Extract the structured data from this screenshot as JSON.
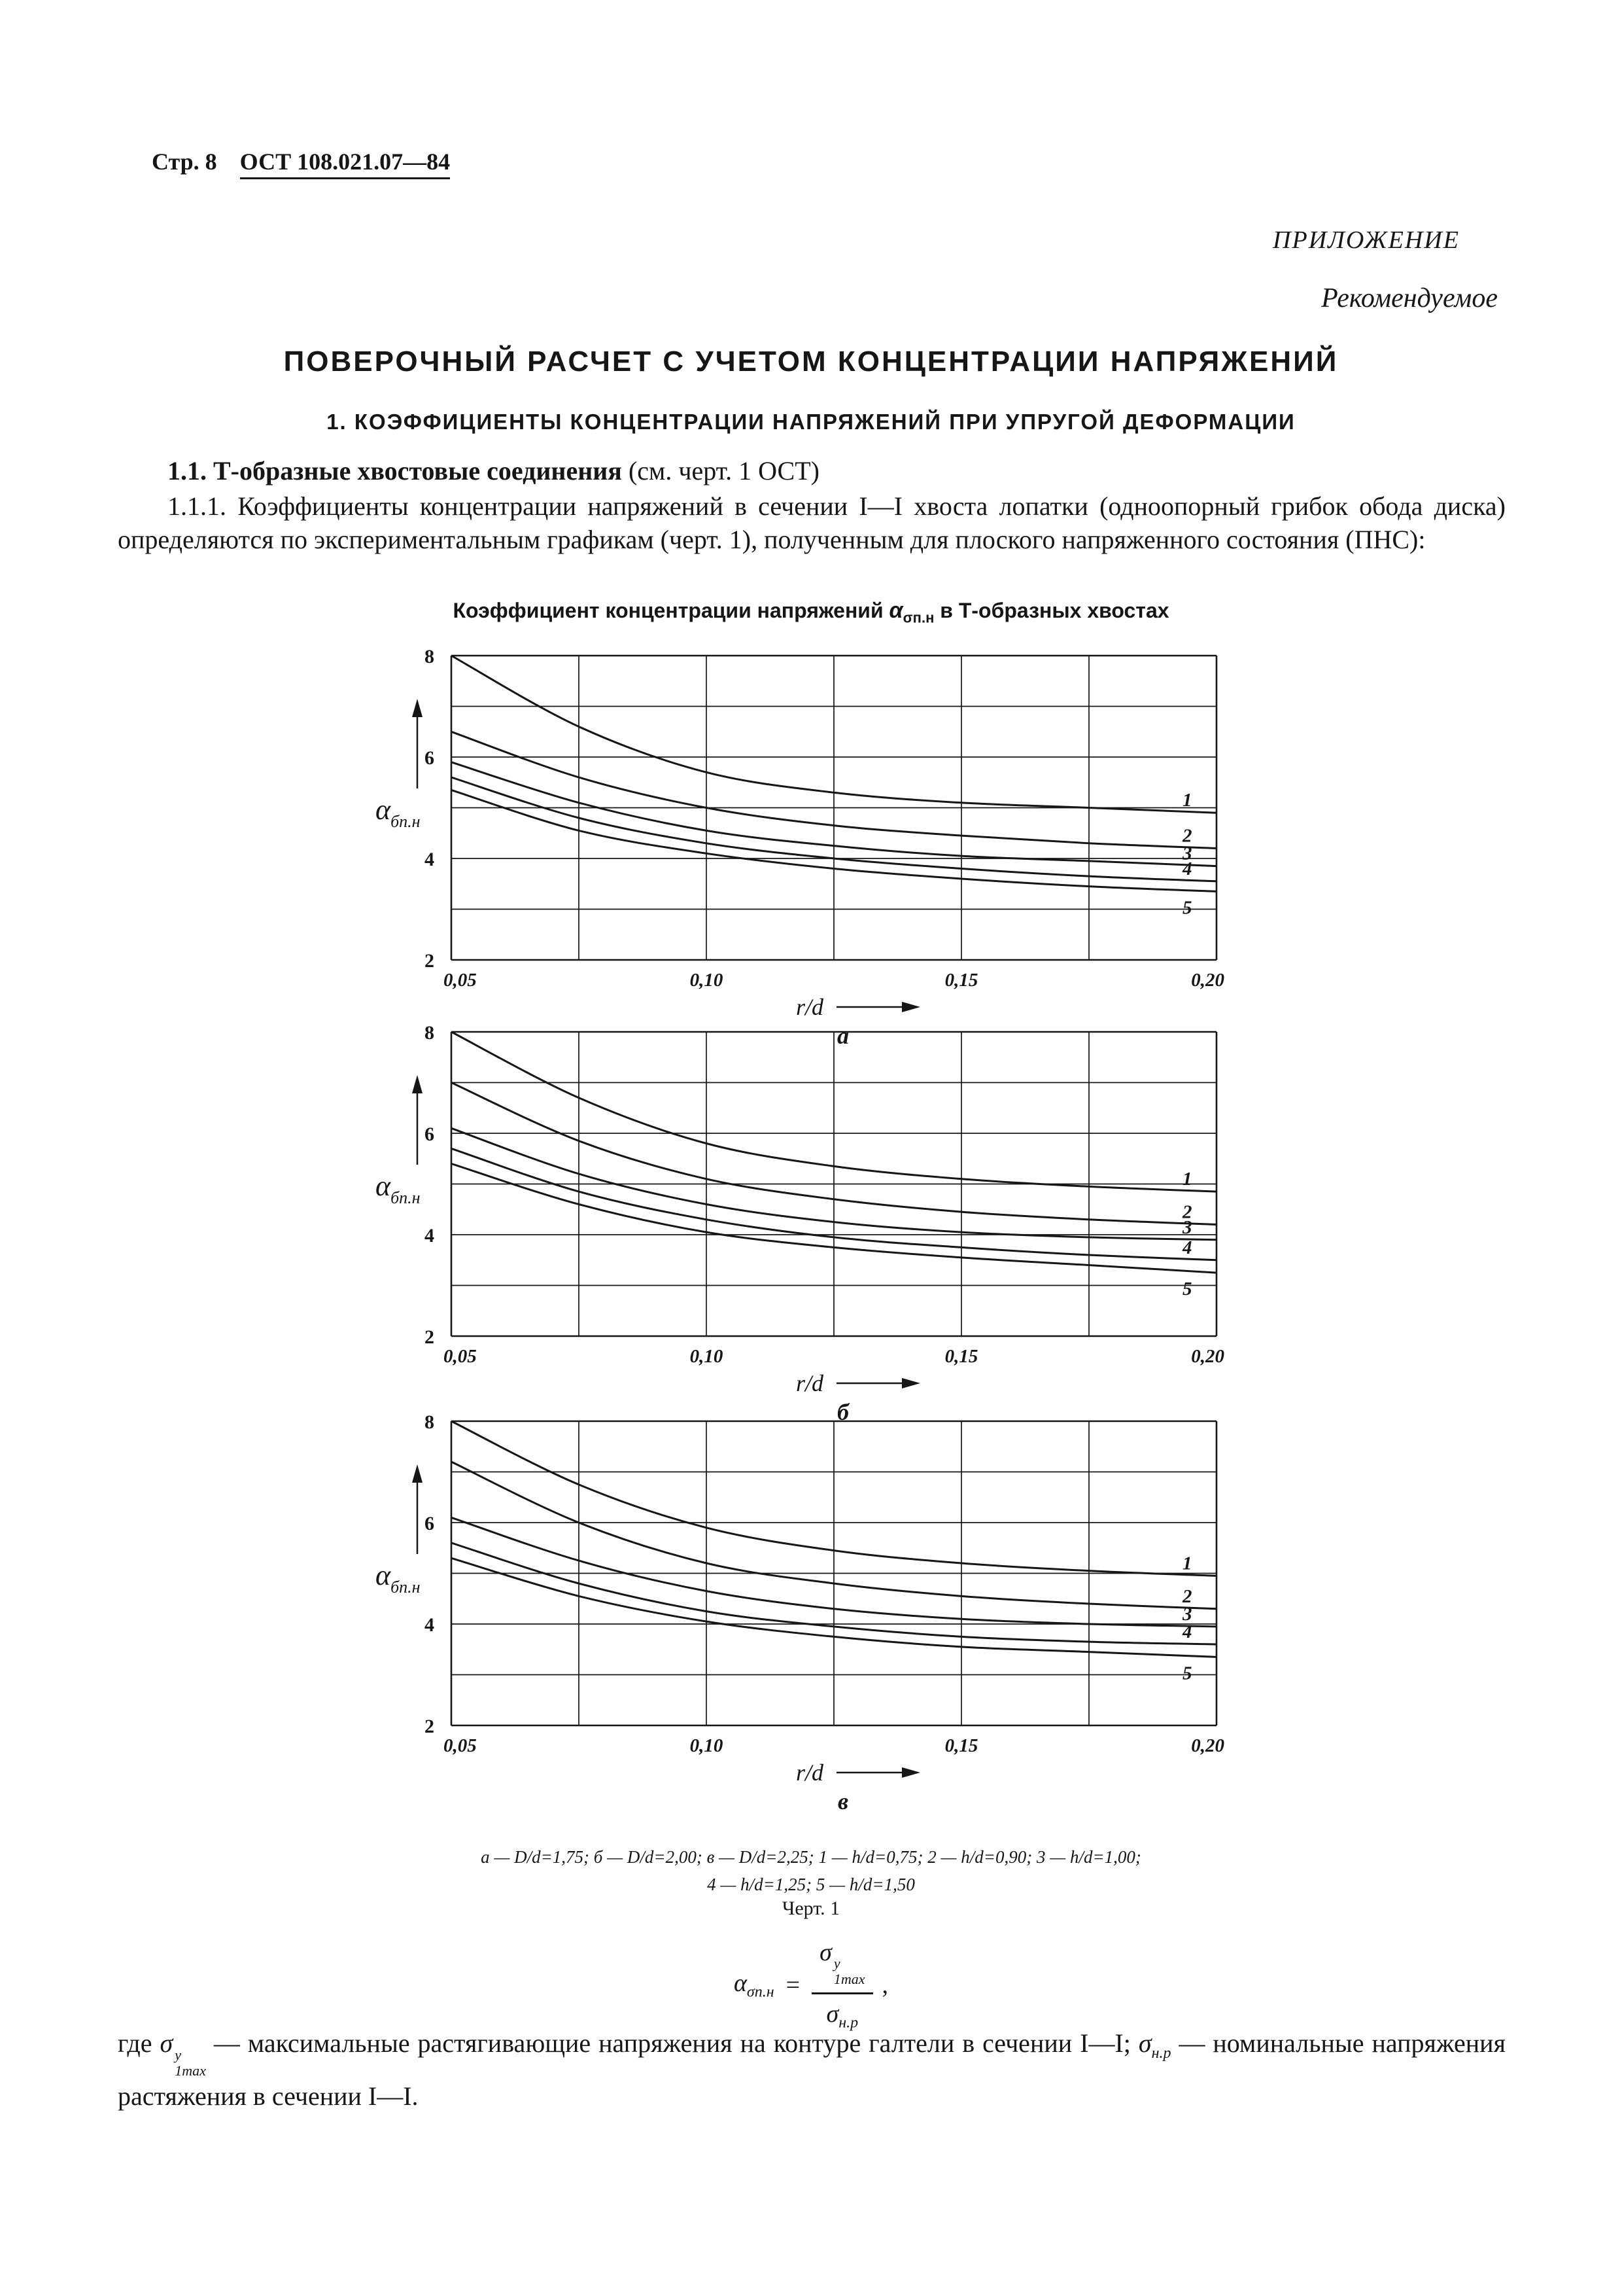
{
  "colors": {
    "ink": "#161616",
    "paper": "#ffffff"
  },
  "header": {
    "page_label": "Стр. 8",
    "doc_number": "ОСТ 108.021.07—84"
  },
  "annex": {
    "label": "ПРИЛОЖЕНИЕ",
    "sublabel": "Рекомендуемое"
  },
  "title": "ПОВЕРОЧНЫЙ РАСЧЕТ С УЧЕТОМ КОНЦЕНТРАЦИИ НАПРЯЖЕНИЙ",
  "section_heading": "1. КОЭФФИЦИЕНТЫ КОНЦЕНТРАЦИИ НАПРЯЖЕНИЙ ПРИ УПРУГОЙ ДЕФОРМАЦИИ",
  "subsection": {
    "bold": "1.1. Т-образные хвостовые соединения",
    "rest": " (см. черт. 1 ОСТ)"
  },
  "paragraph": "1.1.1. Коэффициенты концентрации напряжений в сечении I—I хвоста лопатки (одноопорный грибок обода диска) определяются по экспериментальным графикам (черт. 1), полученным для плоского напряженного состояния (ПНС):",
  "chart_caption": {
    "pre": "Коэффициент концентрации напряжений ",
    "alpha": "α",
    "sub": "σп.н",
    "post": " в Т-образных хвостах"
  },
  "chart_data": [
    {
      "type": "line",
      "label": "а",
      "param": "D/d=1,75",
      "xlabel": "r/d",
      "ylabel_base": "α",
      "ylabel_sub": "бп.н",
      "xlim": [
        0.05,
        0.2
      ],
      "ylim": [
        2,
        8
      ],
      "xgrid": 0.025,
      "ygrid": 1,
      "grid": "on",
      "x": [
        0.05,
        0.075,
        0.1,
        0.125,
        0.15,
        0.175,
        0.2
      ],
      "xticks": [
        {
          "v": 0.05,
          "label": "0,05"
        },
        {
          "v": 0.1,
          "label": "0,10"
        },
        {
          "v": 0.15,
          "label": "0,15"
        },
        {
          "v": 0.2,
          "label": "0,20"
        }
      ],
      "yticks": [
        8,
        6,
        4,
        2
      ],
      "series": [
        {
          "name": "1",
          "values": [
            8.0,
            6.6,
            5.7,
            5.3,
            5.1,
            5.0,
            4.9
          ]
        },
        {
          "name": "2",
          "values": [
            6.5,
            5.6,
            5.0,
            4.65,
            4.45,
            4.3,
            4.2
          ]
        },
        {
          "name": "3",
          "values": [
            5.9,
            5.1,
            4.55,
            4.25,
            4.05,
            3.95,
            3.85
          ]
        },
        {
          "name": "4",
          "values": [
            5.6,
            4.8,
            4.3,
            4.0,
            3.8,
            3.65,
            3.55
          ]
        },
        {
          "name": "5",
          "values": [
            5.35,
            4.55,
            4.1,
            3.8,
            3.6,
            3.45,
            3.35
          ]
        }
      ]
    },
    {
      "type": "line",
      "label": "б",
      "param": "D/d=2,00",
      "xlabel": "r/d",
      "ylabel_base": "α",
      "ylabel_sub": "бп.н",
      "xlim": [
        0.05,
        0.2
      ],
      "ylim": [
        2,
        8
      ],
      "xgrid": 0.025,
      "ygrid": 1,
      "grid": "on",
      "x": [
        0.05,
        0.075,
        0.1,
        0.125,
        0.15,
        0.175,
        0.2
      ],
      "xticks": [
        {
          "v": 0.05,
          "label": "0,05"
        },
        {
          "v": 0.1,
          "label": "0,10"
        },
        {
          "v": 0.15,
          "label": "0,15"
        },
        {
          "v": 0.2,
          "label": "0,20"
        }
      ],
      "yticks": [
        8,
        6,
        4,
        2
      ],
      "series": [
        {
          "name": "1",
          "values": [
            8.0,
            6.7,
            5.8,
            5.35,
            5.1,
            4.95,
            4.85
          ]
        },
        {
          "name": "2",
          "values": [
            7.0,
            5.85,
            5.1,
            4.7,
            4.45,
            4.3,
            4.2
          ]
        },
        {
          "name": "3",
          "values": [
            6.1,
            5.2,
            4.6,
            4.25,
            4.05,
            3.95,
            3.9
          ]
        },
        {
          "name": "4",
          "values": [
            5.7,
            4.85,
            4.3,
            3.95,
            3.75,
            3.6,
            3.5
          ]
        },
        {
          "name": "5",
          "values": [
            5.4,
            4.6,
            4.05,
            3.75,
            3.55,
            3.4,
            3.25
          ]
        }
      ]
    },
    {
      "type": "line",
      "label": "в",
      "param": "D/d=2,25",
      "xlabel": "r/d",
      "ylabel_base": "α",
      "ylabel_sub": "бп.н",
      "xlim": [
        0.05,
        0.2
      ],
      "ylim": [
        2,
        8
      ],
      "xgrid": 0.025,
      "ygrid": 1,
      "grid": "on",
      "x": [
        0.05,
        0.075,
        0.1,
        0.125,
        0.15,
        0.175,
        0.2
      ],
      "xticks": [
        {
          "v": 0.05,
          "label": "0,05"
        },
        {
          "v": 0.1,
          "label": "0,10"
        },
        {
          "v": 0.15,
          "label": "0,15"
        },
        {
          "v": 0.2,
          "label": "0,20"
        }
      ],
      "yticks": [
        8,
        6,
        4,
        2
      ],
      "series": [
        {
          "name": "1",
          "values": [
            8.0,
            6.75,
            5.9,
            5.45,
            5.2,
            5.05,
            4.95
          ]
        },
        {
          "name": "2",
          "values": [
            7.2,
            6.0,
            5.2,
            4.8,
            4.55,
            4.4,
            4.3
          ]
        },
        {
          "name": "3",
          "values": [
            6.1,
            5.25,
            4.65,
            4.3,
            4.1,
            4.0,
            3.95
          ]
        },
        {
          "name": "4",
          "values": [
            5.6,
            4.8,
            4.25,
            3.95,
            3.75,
            3.65,
            3.6
          ]
        },
        {
          "name": "5",
          "values": [
            5.3,
            4.55,
            4.05,
            3.75,
            3.55,
            3.45,
            3.35
          ]
        }
      ]
    }
  ],
  "legend": {
    "line1": "а — D/d=1,75;   б — D/d=2,00;   в — D/d=2,25;   1 — h/d=0,75;   2 — h/d=0,90;   3 — h/d=1,00;",
    "line2": "4 — h/d=1,25;   5 — h/d=1,50"
  },
  "figure_label": "Черт. 1",
  "formula": {
    "lhs_base": "α",
    "lhs_sub": "σп.н",
    "eq": "=",
    "num_base": "σ",
    "num_sup": "у",
    "num_sub": "1max",
    "den_base": "σ",
    "den_sub": "н.р",
    "tail": ","
  },
  "footnote": {
    "t1": "где ",
    "sig1_base": "σ",
    "sig1_sup": "у",
    "sig1_sub": "1max",
    "t2": " — максимальные растягивающие напряжения на контуре галтели в сечении I—I; ",
    "sig2_base": "σ",
    "sig2_sub": "н.р",
    "t3": " — номинальные напряжения растяжения в сечении I—I."
  }
}
